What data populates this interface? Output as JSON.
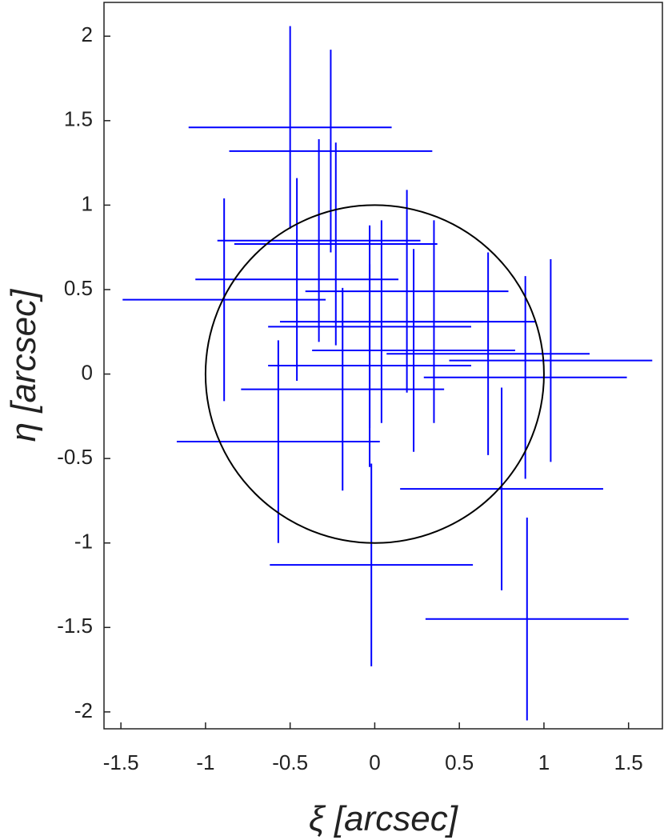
{
  "chart_data": {
    "type": "errorbar_scatter",
    "x_label": "ξ [arcsec]",
    "y_label": "η [arcsec]",
    "xlim": [
      -1.6,
      1.7
    ],
    "ylim": [
      -2.1,
      2.2
    ],
    "xticks": [
      -1.5,
      -1,
      -0.5,
      0,
      0.5,
      1,
      1.5
    ],
    "yticks": [
      -2,
      -1.5,
      -1,
      -0.5,
      0,
      0.5,
      1,
      1.5,
      2
    ],
    "grid": false,
    "series": [
      {
        "color": "#0000ff",
        "x": [
          -0.5,
          -0.26,
          -0.33,
          -0.23,
          -0.46,
          0.19,
          -0.89,
          0.04,
          0.35,
          -0.03,
          -0.03,
          0.23,
          0.67,
          1.04,
          0.89,
          -0.19,
          -0.57,
          0.75,
          -0.02,
          0.9
        ],
        "y": [
          1.46,
          1.32,
          0.79,
          0.77,
          0.56,
          0.49,
          0.44,
          0.31,
          0.31,
          0.28,
          0.05,
          0.14,
          0.12,
          0.08,
          -0.02,
          -0.09,
          -0.4,
          -0.68,
          -1.13,
          -1.45
        ],
        "xerr": [
          0.6,
          0.6,
          0.6,
          0.6,
          0.6,
          0.6,
          0.6,
          0.6,
          0.6,
          0.6,
          0.6,
          0.6,
          0.6,
          0.6,
          0.6,
          0.6,
          0.6,
          0.6,
          0.6,
          0.6
        ],
        "yerr": [
          0.6,
          0.6,
          0.6,
          0.6,
          0.6,
          0.6,
          0.6,
          0.6,
          0.6,
          0.6,
          0.6,
          0.6,
          0.6,
          0.6,
          0.6,
          0.6,
          0.6,
          0.6,
          0.6,
          0.6
        ]
      }
    ],
    "reference_circle": {
      "x": 0,
      "y": 0,
      "r": 1,
      "color": "#000000"
    }
  }
}
